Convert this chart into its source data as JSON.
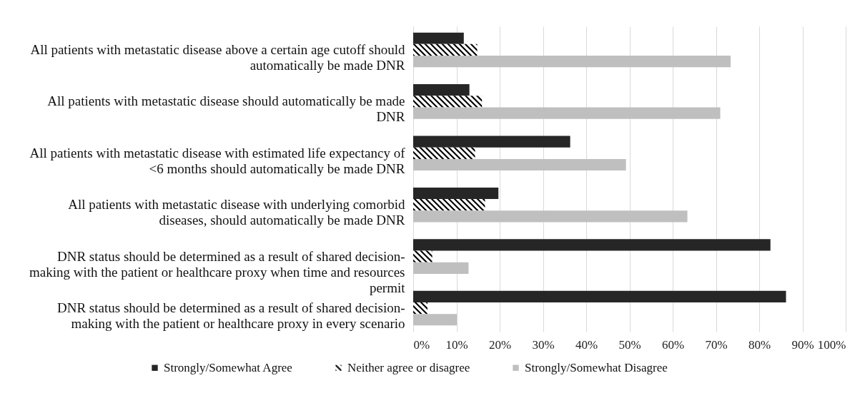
{
  "chart_data": {
    "type": "bar",
    "orientation": "horizontal",
    "categories": [
      "All patients with metastatic disease above a certain age cutoff should automatically be made DNR",
      "All patients with metastatic disease should automatically be made DNR",
      "All patients with metastatic disease with estimated life expectancy of <6 months should automatically be made DNR",
      "All patients with metastatic disease with underlying comorbid diseases, should automatically be made DNR",
      "DNR status should be determined as a result of shared decision-making with the patient or healthcare proxy when time and resources permit",
      "DNR status should be determined as a result of shared decision-making with the patient or healthcare proxy in every scenario"
    ],
    "series": [
      {
        "name": "Strongly/Somewhat Agree",
        "color": "#262626",
        "values": [
          11.7,
          13.0,
          36.3,
          19.7,
          82.6,
          86.2
        ]
      },
      {
        "name": "Neither agree or disagree",
        "color": "#000000",
        "values": [
          14.8,
          15.9,
          14.3,
          16.6,
          4.4,
          3.3
        ]
      },
      {
        "name": "Strongly/Somewhat Disagree",
        "color": "#bfbfbf",
        "values": [
          73.4,
          71.0,
          49.2,
          63.4,
          12.8,
          10.1
        ]
      }
    ],
    "xlim": [
      0,
      100
    ],
    "xticks": [
      {
        "value": 0,
        "label": "0%"
      },
      {
        "value": 10,
        "label": "10%"
      },
      {
        "value": 20,
        "label": "20%"
      },
      {
        "value": 30,
        "label": "30%"
      },
      {
        "value": 40,
        "label": "40%"
      },
      {
        "value": 50,
        "label": "50%"
      },
      {
        "value": 60,
        "label": "60%"
      },
      {
        "value": 70,
        "label": "70%"
      },
      {
        "value": 80,
        "label": "80%"
      },
      {
        "value": 90,
        "label": "90%"
      },
      {
        "value": 100,
        "label": "100%"
      }
    ],
    "grid": "x",
    "legend": "bottom"
  }
}
